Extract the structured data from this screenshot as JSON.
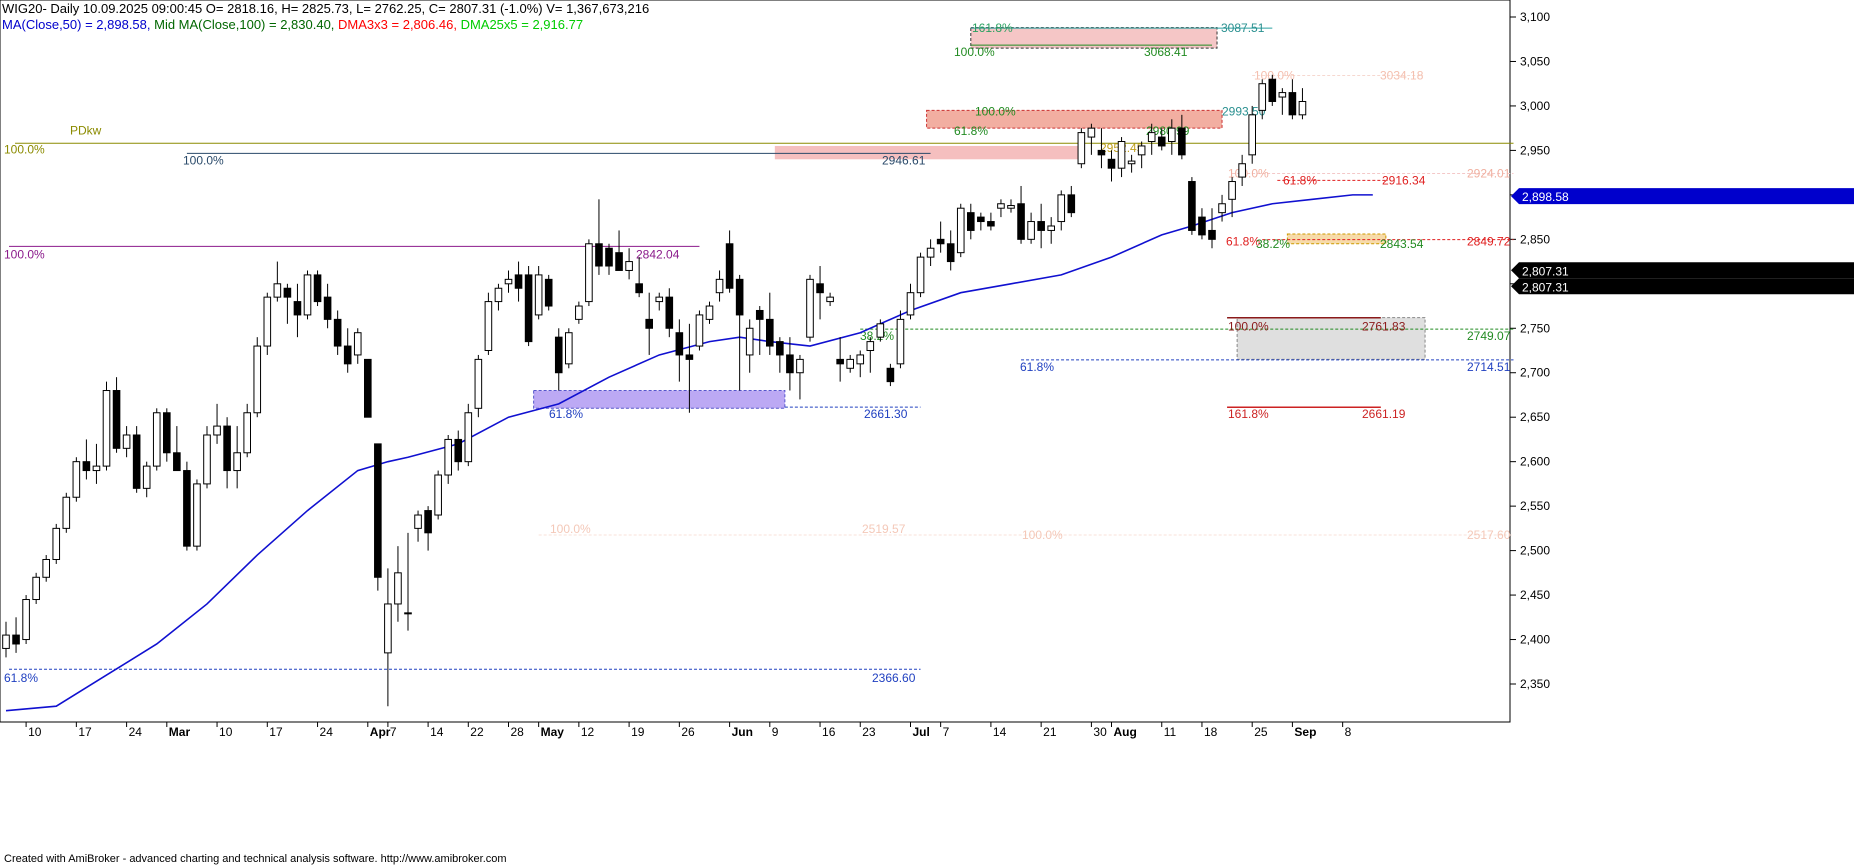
{
  "header": {
    "line1": "WIG20- Daily 10.09.2025 09:00:45 O= 2818.16, H= 2825.73, L= 2762.25, C= 2807.31 (-1.0%) V= 1,367,673,216",
    "ma50": "MA(Close,50) = 2,898.58,",
    "mid_ma": "Mid MA(Close,100) = 2,830.40,",
    "dma3": "DMA3x3 = 2,806.46,",
    "dma25": "DMA25x5 = 2,916.77",
    "colors": {
      "ma50": "#0000cc",
      "mid_ma": "#006600",
      "dma3": "#ff0000",
      "dma25": "#00cc00"
    }
  },
  "footer": {
    "text": "Created with AmiBroker - advanced charting and technical analysis software. http://www.amibroker.com"
  },
  "chart_data": {
    "type": "candlestick",
    "instrument": "WIG20",
    "ylim": [
      2320,
      3125
    ],
    "y_ticks": [
      2350,
      2400,
      2450,
      2500,
      2550,
      2600,
      2650,
      2700,
      2750,
      2800,
      2850,
      2900,
      2950,
      3000,
      3050,
      3100
    ],
    "y_tick_labels": [
      "2,350",
      "2,400",
      "2,450",
      "2,500",
      "2,550",
      "2,600",
      "2,650",
      "2,700",
      "2,750",
      "2,800",
      "2,850",
      "2,900",
      "2,950",
      "3,000",
      "3,050",
      "3,100"
    ],
    "x_labels": [
      {
        "i": 2,
        "t": "10",
        "bold": false
      },
      {
        "i": 7,
        "t": "17",
        "bold": false
      },
      {
        "i": 12,
        "t": "24",
        "bold": false
      },
      {
        "i": 16,
        "t": "Mar",
        "bold": true
      },
      {
        "i": 21,
        "t": "10",
        "bold": false
      },
      {
        "i": 26,
        "t": "17",
        "bold": false
      },
      {
        "i": 31,
        "t": "24",
        "bold": false
      },
      {
        "i": 36,
        "t": "Apr",
        "bold": true
      },
      {
        "i": 38,
        "t": "7",
        "bold": false
      },
      {
        "i": 42,
        "t": "14",
        "bold": false
      },
      {
        "i": 46,
        "t": "22",
        "bold": false
      },
      {
        "i": 50,
        "t": "28",
        "bold": false
      },
      {
        "i": 53,
        "t": "May",
        "bold": true
      },
      {
        "i": 57,
        "t": "12",
        "bold": false
      },
      {
        "i": 62,
        "t": "19",
        "bold": false
      },
      {
        "i": 67,
        "t": "26",
        "bold": false
      },
      {
        "i": 72,
        "t": "Jun",
        "bold": true
      },
      {
        "i": 76,
        "t": "9",
        "bold": false
      },
      {
        "i": 81,
        "t": "16",
        "bold": false
      },
      {
        "i": 85,
        "t": "23",
        "bold": false
      },
      {
        "i": 90,
        "t": "Jul",
        "bold": true
      },
      {
        "i": 93,
        "t": "7",
        "bold": false
      },
      {
        "i": 98,
        "t": "14",
        "bold": false
      },
      {
        "i": 103,
        "t": "21",
        "bold": false
      },
      {
        "i": 108,
        "t": "30",
        "bold": false
      },
      {
        "i": 110,
        "t": "Aug",
        "bold": true
      },
      {
        "i": 115,
        "t": "11",
        "bold": false
      },
      {
        "i": 119,
        "t": "18",
        "bold": false
      },
      {
        "i": 124,
        "t": "25",
        "bold": false
      },
      {
        "i": 128,
        "t": "Sep",
        "bold": true
      },
      {
        "i": 133,
        "t": "8",
        "bold": false
      }
    ],
    "ohlc": [
      [
        2390,
        2420,
        2380,
        2405
      ],
      [
        2405,
        2425,
        2385,
        2395
      ],
      [
        2400,
        2450,
        2395,
        2445
      ],
      [
        2445,
        2475,
        2440,
        2470
      ],
      [
        2470,
        2495,
        2465,
        2490
      ],
      [
        2490,
        2530,
        2485,
        2525
      ],
      [
        2525,
        2565,
        2520,
        2560
      ],
      [
        2560,
        2605,
        2555,
        2600
      ],
      [
        2600,
        2625,
        2580,
        2590
      ],
      [
        2590,
        2620,
        2575,
        2595
      ],
      [
        2595,
        2690,
        2590,
        2680
      ],
      [
        2680,
        2695,
        2610,
        2615
      ],
      [
        2615,
        2640,
        2605,
        2630
      ],
      [
        2630,
        2640,
        2565,
        2570
      ],
      [
        2570,
        2600,
        2560,
        2595
      ],
      [
        2595,
        2660,
        2590,
        2655
      ],
      [
        2655,
        2660,
        2600,
        2610
      ],
      [
        2610,
        2640,
        2590,
        2590
      ],
      [
        2590,
        2600,
        2500,
        2505
      ],
      [
        2505,
        2580,
        2500,
        2575
      ],
      [
        2575,
        2640,
        2570,
        2630
      ],
      [
        2630,
        2665,
        2620,
        2640
      ],
      [
        2640,
        2650,
        2570,
        2590
      ],
      [
        2590,
        2640,
        2570,
        2610
      ],
      [
        2610,
        2665,
        2605,
        2655
      ],
      [
        2655,
        2740,
        2650,
        2730
      ],
      [
        2730,
        2790,
        2720,
        2785
      ],
      [
        2785,
        2825,
        2780,
        2800
      ],
      [
        2795,
        2800,
        2755,
        2785
      ],
      [
        2780,
        2800,
        2740,
        2765
      ],
      [
        2765,
        2815,
        2760,
        2810
      ],
      [
        2810,
        2815,
        2775,
        2780
      ],
      [
        2785,
        2800,
        2750,
        2760
      ],
      [
        2760,
        2770,
        2720,
        2730
      ],
      [
        2730,
        2750,
        2700,
        2710
      ],
      [
        2720,
        2750,
        2710,
        2745
      ],
      [
        2715,
        2715,
        2650,
        2650
      ],
      [
        2620,
        2620,
        2455,
        2470
      ],
      [
        2385,
        2480,
        2325,
        2440
      ],
      [
        2440,
        2505,
        2420,
        2475
      ],
      [
        2430,
        2520,
        2410,
        2430
      ],
      [
        2525,
        2545,
        2510,
        2540
      ],
      [
        2545,
        2550,
        2500,
        2520
      ],
      [
        2540,
        2590,
        2535,
        2585
      ],
      [
        2585,
        2630,
        2575,
        2625
      ],
      [
        2625,
        2635,
        2590,
        2600
      ],
      [
        2600,
        2665,
        2595,
        2655
      ],
      [
        2660,
        2720,
        2650,
        2715
      ],
      [
        2725,
        2790,
        2720,
        2780
      ],
      [
        2780,
        2800,
        2770,
        2795
      ],
      [
        2800,
        2815,
        2790,
        2805
      ],
      [
        2810,
        2825,
        2780,
        2795
      ],
      [
        2810,
        2820,
        2730,
        2735
      ],
      [
        2765,
        2820,
        2760,
        2810
      ],
      [
        2805,
        2810,
        2770,
        2775
      ],
      [
        2740,
        2750,
        2680,
        2700
      ],
      [
        2710,
        2750,
        2705,
        2745
      ],
      [
        2760,
        2780,
        2755,
        2775
      ],
      [
        2780,
        2850,
        2775,
        2845
      ],
      [
        2845,
        2895,
        2810,
        2820
      ],
      [
        2840,
        2845,
        2810,
        2820
      ],
      [
        2835,
        2860,
        2815,
        2815
      ],
      [
        2815,
        2840,
        2805,
        2825
      ],
      [
        2800,
        2830,
        2785,
        2790
      ],
      [
        2760,
        2790,
        2720,
        2750
      ],
      [
        2780,
        2790,
        2770,
        2785
      ],
      [
        2785,
        2795,
        2740,
        2750
      ],
      [
        2745,
        2760,
        2690,
        2720
      ],
      [
        2720,
        2755,
        2655,
        2715
      ],
      [
        2730,
        2770,
        2725,
        2765
      ],
      [
        2760,
        2780,
        2755,
        2775
      ],
      [
        2790,
        2815,
        2780,
        2805
      ],
      [
        2845,
        2860,
        2790,
        2795
      ],
      [
        2805,
        2810,
        2680,
        2765
      ],
      [
        2720,
        2760,
        2700,
        2750
      ],
      [
        2770,
        2775,
        2720,
        2760
      ],
      [
        2760,
        2790,
        2720,
        2730
      ],
      [
        2735,
        2740,
        2700,
        2720
      ],
      [
        2720,
        2740,
        2680,
        2700
      ],
      [
        2700,
        2720,
        2670,
        2715
      ],
      [
        2740,
        2810,
        2735,
        2805
      ],
      [
        2800,
        2820,
        2760,
        2790
      ],
      [
        2780,
        2790,
        2775,
        2785
      ],
      [
        2715,
        2740,
        2690,
        2710
      ],
      [
        2705,
        2720,
        2700,
        2715
      ],
      [
        2710,
        2725,
        2695,
        2720
      ],
      [
        2725,
        2740,
        2700,
        2735
      ],
      [
        2740,
        2760,
        2735,
        2755
      ],
      [
        2705,
        2710,
        2685,
        2690
      ],
      [
        2710,
        2770,
        2705,
        2760
      ],
      [
        2765,
        2800,
        2760,
        2790
      ],
      [
        2790,
        2835,
        2785,
        2830
      ],
      [
        2830,
        2850,
        2820,
        2840
      ],
      [
        2850,
        2870,
        2835,
        2845
      ],
      [
        2845,
        2860,
        2815,
        2825
      ],
      [
        2835,
        2890,
        2830,
        2885
      ],
      [
        2880,
        2890,
        2850,
        2860
      ],
      [
        2875,
        2880,
        2860,
        2870
      ],
      [
        2870,
        2880,
        2860,
        2865
      ],
      [
        2885,
        2895,
        2875,
        2890
      ],
      [
        2885,
        2895,
        2880,
        2888
      ],
      [
        2890,
        2910,
        2845,
        2850
      ],
      [
        2850,
        2880,
        2845,
        2870
      ],
      [
        2870,
        2890,
        2840,
        2860
      ],
      [
        2860,
        2875,
        2845,
        2865
      ],
      [
        2870,
        2905,
        2860,
        2900
      ],
      [
        2900,
        2910,
        2875,
        2880
      ],
      [
        2935,
        2975,
        2930,
        2970
      ],
      [
        2965,
        2980,
        2945,
        2975
      ],
      [
        2950,
        2975,
        2930,
        2945
      ],
      [
        2940,
        2950,
        2915,
        2930
      ],
      [
        2930,
        2965,
        2920,
        2960
      ],
      [
        2935,
        2945,
        2925,
        2938
      ],
      [
        2945,
        2960,
        2930,
        2955
      ],
      [
        2960,
        2980,
        2945,
        2970
      ],
      [
        2965,
        2975,
        2950,
        2955
      ],
      [
        2960,
        2985,
        2945,
        2975
      ],
      [
        2975,
        2990,
        2940,
        2945
      ],
      [
        2915,
        2920,
        2855,
        2860
      ],
      [
        2875,
        2885,
        2850,
        2855
      ],
      [
        2860,
        2885,
        2840,
        2850
      ],
      [
        2880,
        2900,
        2870,
        2890
      ],
      [
        2895,
        2920,
        2875,
        2915
      ],
      [
        2920,
        2945,
        2910,
        2935
      ],
      [
        2945,
        3000,
        2935,
        2990
      ],
      [
        2995,
        3030,
        2985,
        3025
      ],
      [
        3030,
        3035,
        3000,
        3005
      ],
      [
        3010,
        3020,
        2990,
        3015
      ],
      [
        3015,
        3030,
        2985,
        2990
      ],
      [
        2990,
        3020,
        2985,
        3005
      ]
    ],
    "candle_count": 130,
    "ma50": [
      [
        0,
        2320
      ],
      [
        5,
        2325
      ],
      [
        10,
        2360
      ],
      [
        15,
        2395
      ],
      [
        20,
        2440
      ],
      [
        25,
        2495
      ],
      [
        30,
        2545
      ],
      [
        35,
        2590
      ],
      [
        38,
        2600
      ],
      [
        40,
        2605
      ],
      [
        45,
        2620
      ],
      [
        50,
        2650
      ],
      [
        55,
        2665
      ],
      [
        60,
        2695
      ],
      [
        65,
        2720
      ],
      [
        70,
        2735
      ],
      [
        73,
        2740
      ],
      [
        76,
        2735
      ],
      [
        80,
        2730
      ],
      [
        85,
        2745
      ],
      [
        90,
        2770
      ],
      [
        95,
        2790
      ],
      [
        100,
        2800
      ],
      [
        105,
        2810
      ],
      [
        110,
        2830
      ],
      [
        115,
        2855
      ],
      [
        118,
        2865
      ],
      [
        122,
        2880
      ],
      [
        126,
        2890
      ],
      [
        130,
        2895
      ],
      [
        134,
        2900
      ],
      [
        136,
        2900
      ]
    ],
    "levels": [
      {
        "label": "PDkw"
      },
      {
        "left": "100.0%"
      },
      {
        "left": "100.0%",
        "right": "2946.61"
      },
      {
        "left": "100.0%",
        "right": "2842.04"
      },
      {
        "left": "61.8%",
        "right": "2366.60"
      },
      {
        "left": "61.8%",
        "right": "2661.30"
      },
      {
        "left": "38.2%"
      },
      {
        "left": "61.8%",
        "right": "2714.51"
      },
      {
        "right": "2749.07"
      },
      {
        "left": "100.0%",
        "right": "2761.83"
      },
      {
        "left": "161.8%",
        "right": "2661.19"
      },
      {
        "left": "61.8%",
        "right": "2849.72"
      },
      {
        "right": "2916.34"
      },
      {
        "right": "2924.01"
      },
      {
        "left": "100.0%",
        "right": "3034.18"
      },
      {
        "left": "161.8%",
        "right": "3087.51"
      },
      {
        "left": "100.0%",
        "right": "3068.41"
      },
      {
        "left": "100.0%",
        "right": "2993.50"
      },
      {
        "left": "61.8%",
        "right": "2980.99"
      },
      {
        "right": "2952.45"
      },
      {
        "left": "38.2%",
        "right": "2843.54"
      },
      {
        "left": "100.0%",
        "right": "2519.57"
      },
      {
        "left": "100.0%",
        "right": "2517.60"
      },
      {
        "left": "100.0%"
      }
    ],
    "right_badges": [
      {
        "value": "2,898.58"
      },
      {
        "value": "2,807.31"
      },
      {
        "value": "2,807.31"
      }
    ]
  }
}
